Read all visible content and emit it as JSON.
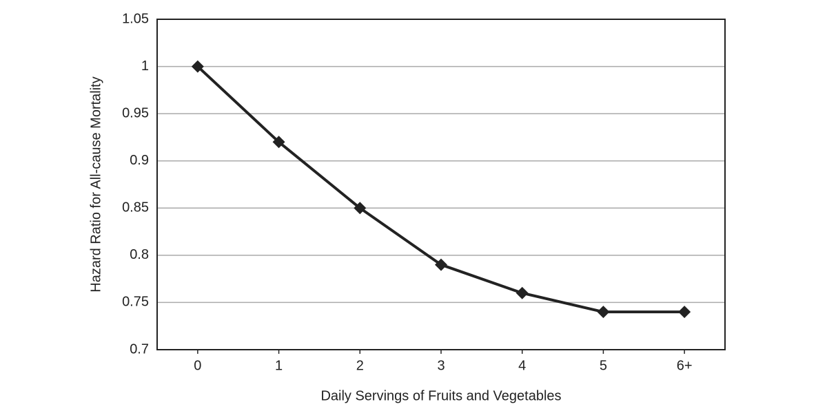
{
  "chart_data": {
    "type": "line",
    "x_label": "Daily Servings of Fruits and Vegetables",
    "y_label": "Hazard Ratio for All-cause Mortality",
    "categories": [
      "0",
      "1",
      "2",
      "3",
      "4",
      "5",
      "6+"
    ],
    "values": [
      1,
      0.92,
      0.85,
      0.79,
      0.76,
      0.74,
      0.74
    ],
    "color": "#222222",
    "ylim": [
      0.7,
      1.05
    ],
    "yticks": [
      0.7,
      0.75,
      0.8,
      0.85,
      0.9,
      0.95,
      1,
      1.05
    ],
    "grid": true
  }
}
